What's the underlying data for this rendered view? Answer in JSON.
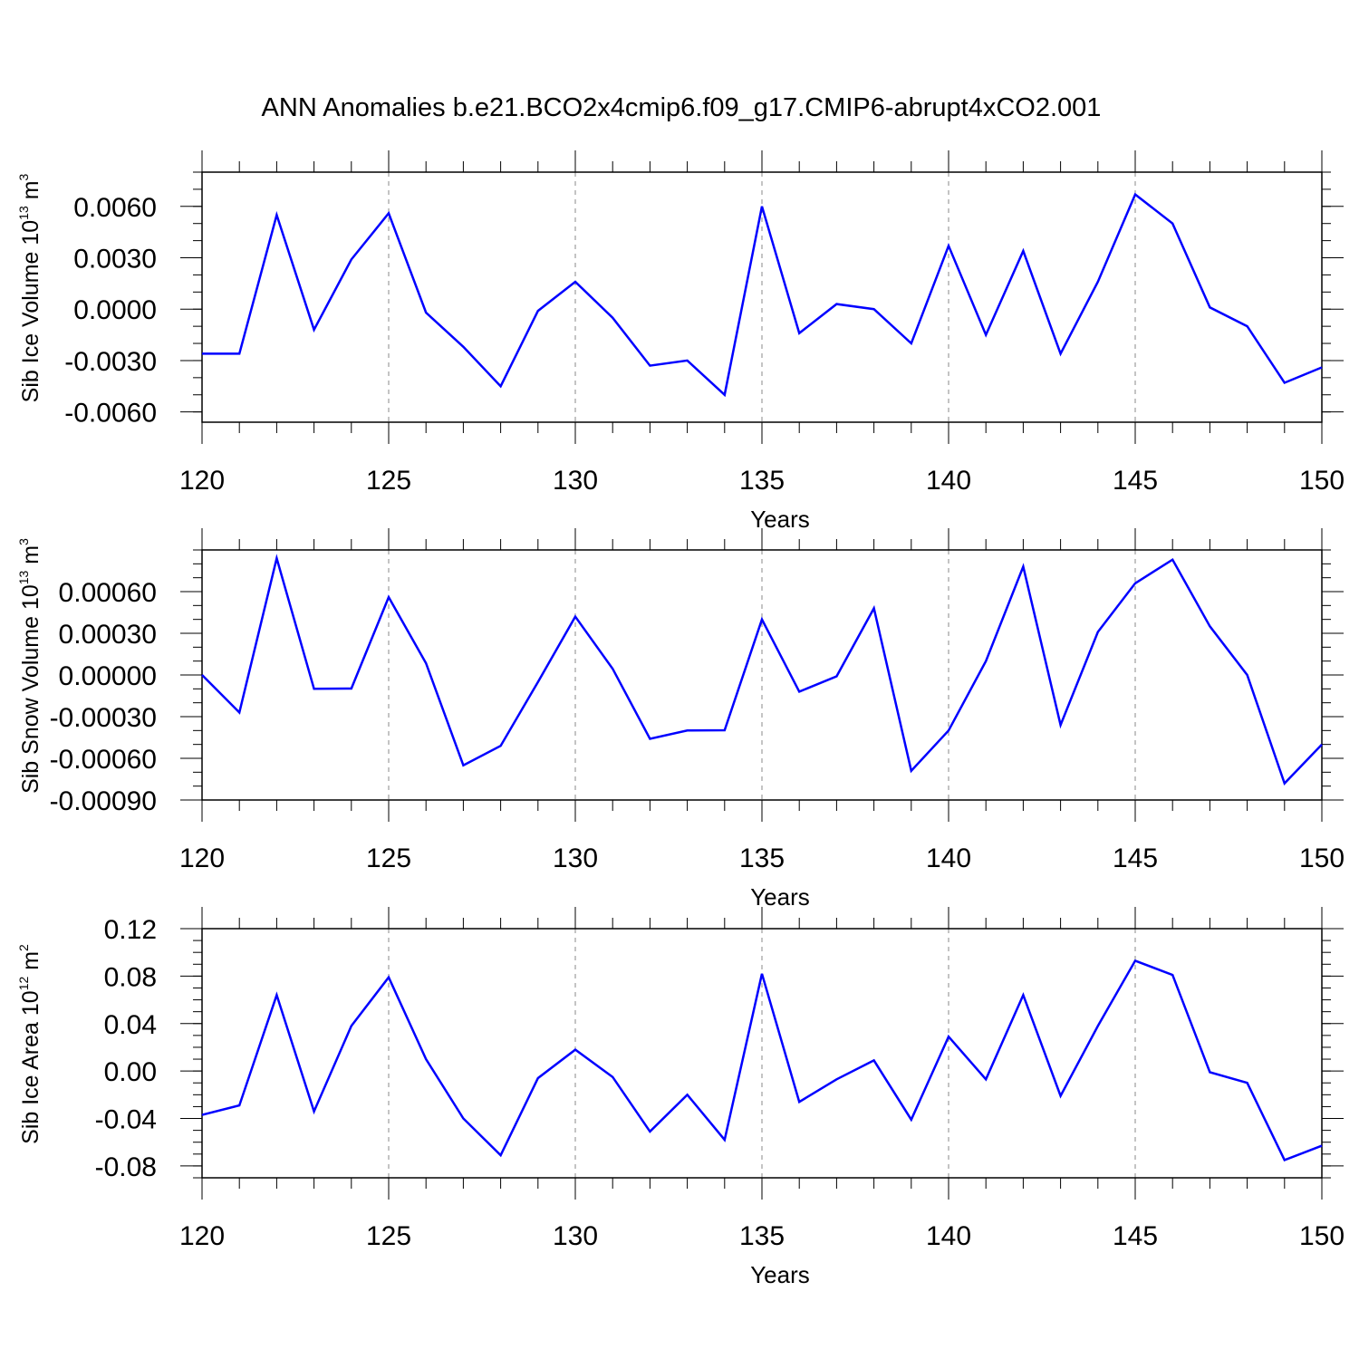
{
  "title": "ANN Anomalies b.e21.BCO2x4cmip6.f09_g17.CMIP6-abrupt4xCO2.001",
  "line_color": "#0000ff",
  "chart_data": [
    {
      "type": "line",
      "xlabel": "Years",
      "ylabel_main": "Sib Ice Volume 10",
      "ylabel_exp1": "13",
      "ylabel_unit": " m",
      "ylabel_exp2": "3",
      "xlim": [
        120,
        150
      ],
      "ylim": [
        -0.0066,
        0.008
      ],
      "xticks": [
        "120",
        "125",
        "130",
        "135",
        "140",
        "145",
        "150"
      ],
      "yticks": [
        {
          "value": -0.006,
          "label": "-0.0060"
        },
        {
          "value": -0.003,
          "label": "-0.0030"
        },
        {
          "value": 0.0,
          "label": "0.0000"
        },
        {
          "value": 0.003,
          "label": "0.0030"
        },
        {
          "value": 0.006,
          "label": "0.0060"
        }
      ],
      "y_minor_step": 0.001,
      "x": [
        120,
        121,
        122,
        123,
        124,
        125,
        126,
        127,
        128,
        129,
        130,
        131,
        132,
        133,
        134,
        135,
        136,
        137,
        138,
        139,
        140,
        141,
        142,
        143,
        144,
        145,
        146,
        147,
        148,
        149,
        150
      ],
      "series": [
        {
          "values": [
            -0.0026,
            -0.0026,
            0.0055,
            -0.0012,
            0.0029,
            0.0056,
            -0.0002,
            -0.0022,
            -0.0045,
            -0.0001,
            0.0016,
            -0.0005,
            -0.0033,
            -0.003,
            -0.005,
            0.006,
            -0.0014,
            0.0003,
            0.0,
            -0.002,
            0.0037,
            -0.0015,
            0.0034,
            -0.0026,
            0.0016,
            0.0067,
            0.005,
            0.0001,
            -0.001,
            -0.0043,
            -0.0034
          ]
        }
      ]
    },
    {
      "type": "line",
      "xlabel": "Years",
      "ylabel_main": "Sib Snow Volume 10",
      "ylabel_exp1": "13",
      "ylabel_unit": " m",
      "ylabel_exp2": "3",
      "xlim": [
        120,
        150
      ],
      "ylim": [
        -0.0009,
        0.0009
      ],
      "xticks": [
        "120",
        "125",
        "130",
        "135",
        "140",
        "145",
        "150"
      ],
      "yticks": [
        {
          "value": -0.0009,
          "label": "-0.00090"
        },
        {
          "value": -0.0006,
          "label": "-0.00060"
        },
        {
          "value": -0.0003,
          "label": "-0.00030"
        },
        {
          "value": 0.0,
          "label": "0.00000"
        },
        {
          "value": 0.0003,
          "label": "0.00030"
        },
        {
          "value": 0.0006,
          "label": "0.00060"
        }
      ],
      "y_minor_step": 0.0001,
      "x": [
        120,
        121,
        122,
        123,
        124,
        125,
        126,
        127,
        128,
        129,
        130,
        131,
        132,
        133,
        134,
        135,
        136,
        137,
        138,
        139,
        140,
        141,
        142,
        143,
        144,
        145,
        146,
        147,
        148,
        149,
        150
      ],
      "series": [
        {
          "values": [
            0.0,
            -0.00027,
            0.00084,
            -0.0001,
            -9.8e-05,
            0.00056,
            8.5e-05,
            -0.00065,
            -0.00051,
            -5e-05,
            0.00042,
            4.5e-05,
            -0.00046,
            -0.0004,
            -0.000398,
            0.0004,
            -0.00012,
            -1e-05,
            0.00048,
            -0.00069,
            -0.0004,
            0.0001,
            0.00078,
            -0.00036,
            0.00031,
            0.00066,
            0.00083,
            0.00035,
            0.0,
            -0.00078,
            -0.0005
          ]
        }
      ]
    },
    {
      "type": "line",
      "xlabel": "Years",
      "ylabel_main": "Sib Ice Area 10",
      "ylabel_exp1": "12",
      "ylabel_unit": " m",
      "ylabel_exp2": "2",
      "xlim": [
        120,
        150
      ],
      "ylim": [
        -0.09,
        0.12
      ],
      "xticks": [
        "120",
        "125",
        "130",
        "135",
        "140",
        "145",
        "150"
      ],
      "yticks": [
        {
          "value": -0.08,
          "label": "-0.08"
        },
        {
          "value": -0.04,
          "label": "-0.04"
        },
        {
          "value": 0.0,
          "label": "0.00"
        },
        {
          "value": 0.04,
          "label": "0.04"
        },
        {
          "value": 0.08,
          "label": "0.08"
        },
        {
          "value": 0.12,
          "label": "0.12"
        }
      ],
      "y_minor_step": 0.01,
      "x": [
        120,
        121,
        122,
        123,
        124,
        125,
        126,
        127,
        128,
        129,
        130,
        131,
        132,
        133,
        134,
        135,
        136,
        137,
        138,
        139,
        140,
        141,
        142,
        143,
        144,
        145,
        146,
        147,
        148,
        149,
        150
      ],
      "series": [
        {
          "values": [
            -0.037,
            -0.029,
            0.064,
            -0.034,
            0.038,
            0.079,
            0.01,
            -0.04,
            -0.071,
            -0.006,
            0.018,
            -0.005,
            -0.051,
            -0.02,
            -0.058,
            0.082,
            -0.026,
            -0.007,
            0.009,
            -0.041,
            0.029,
            -0.007,
            0.064,
            -0.021,
            0.038,
            0.093,
            0.081,
            -0.001,
            -0.01,
            -0.075,
            -0.063
          ]
        }
      ]
    }
  ]
}
